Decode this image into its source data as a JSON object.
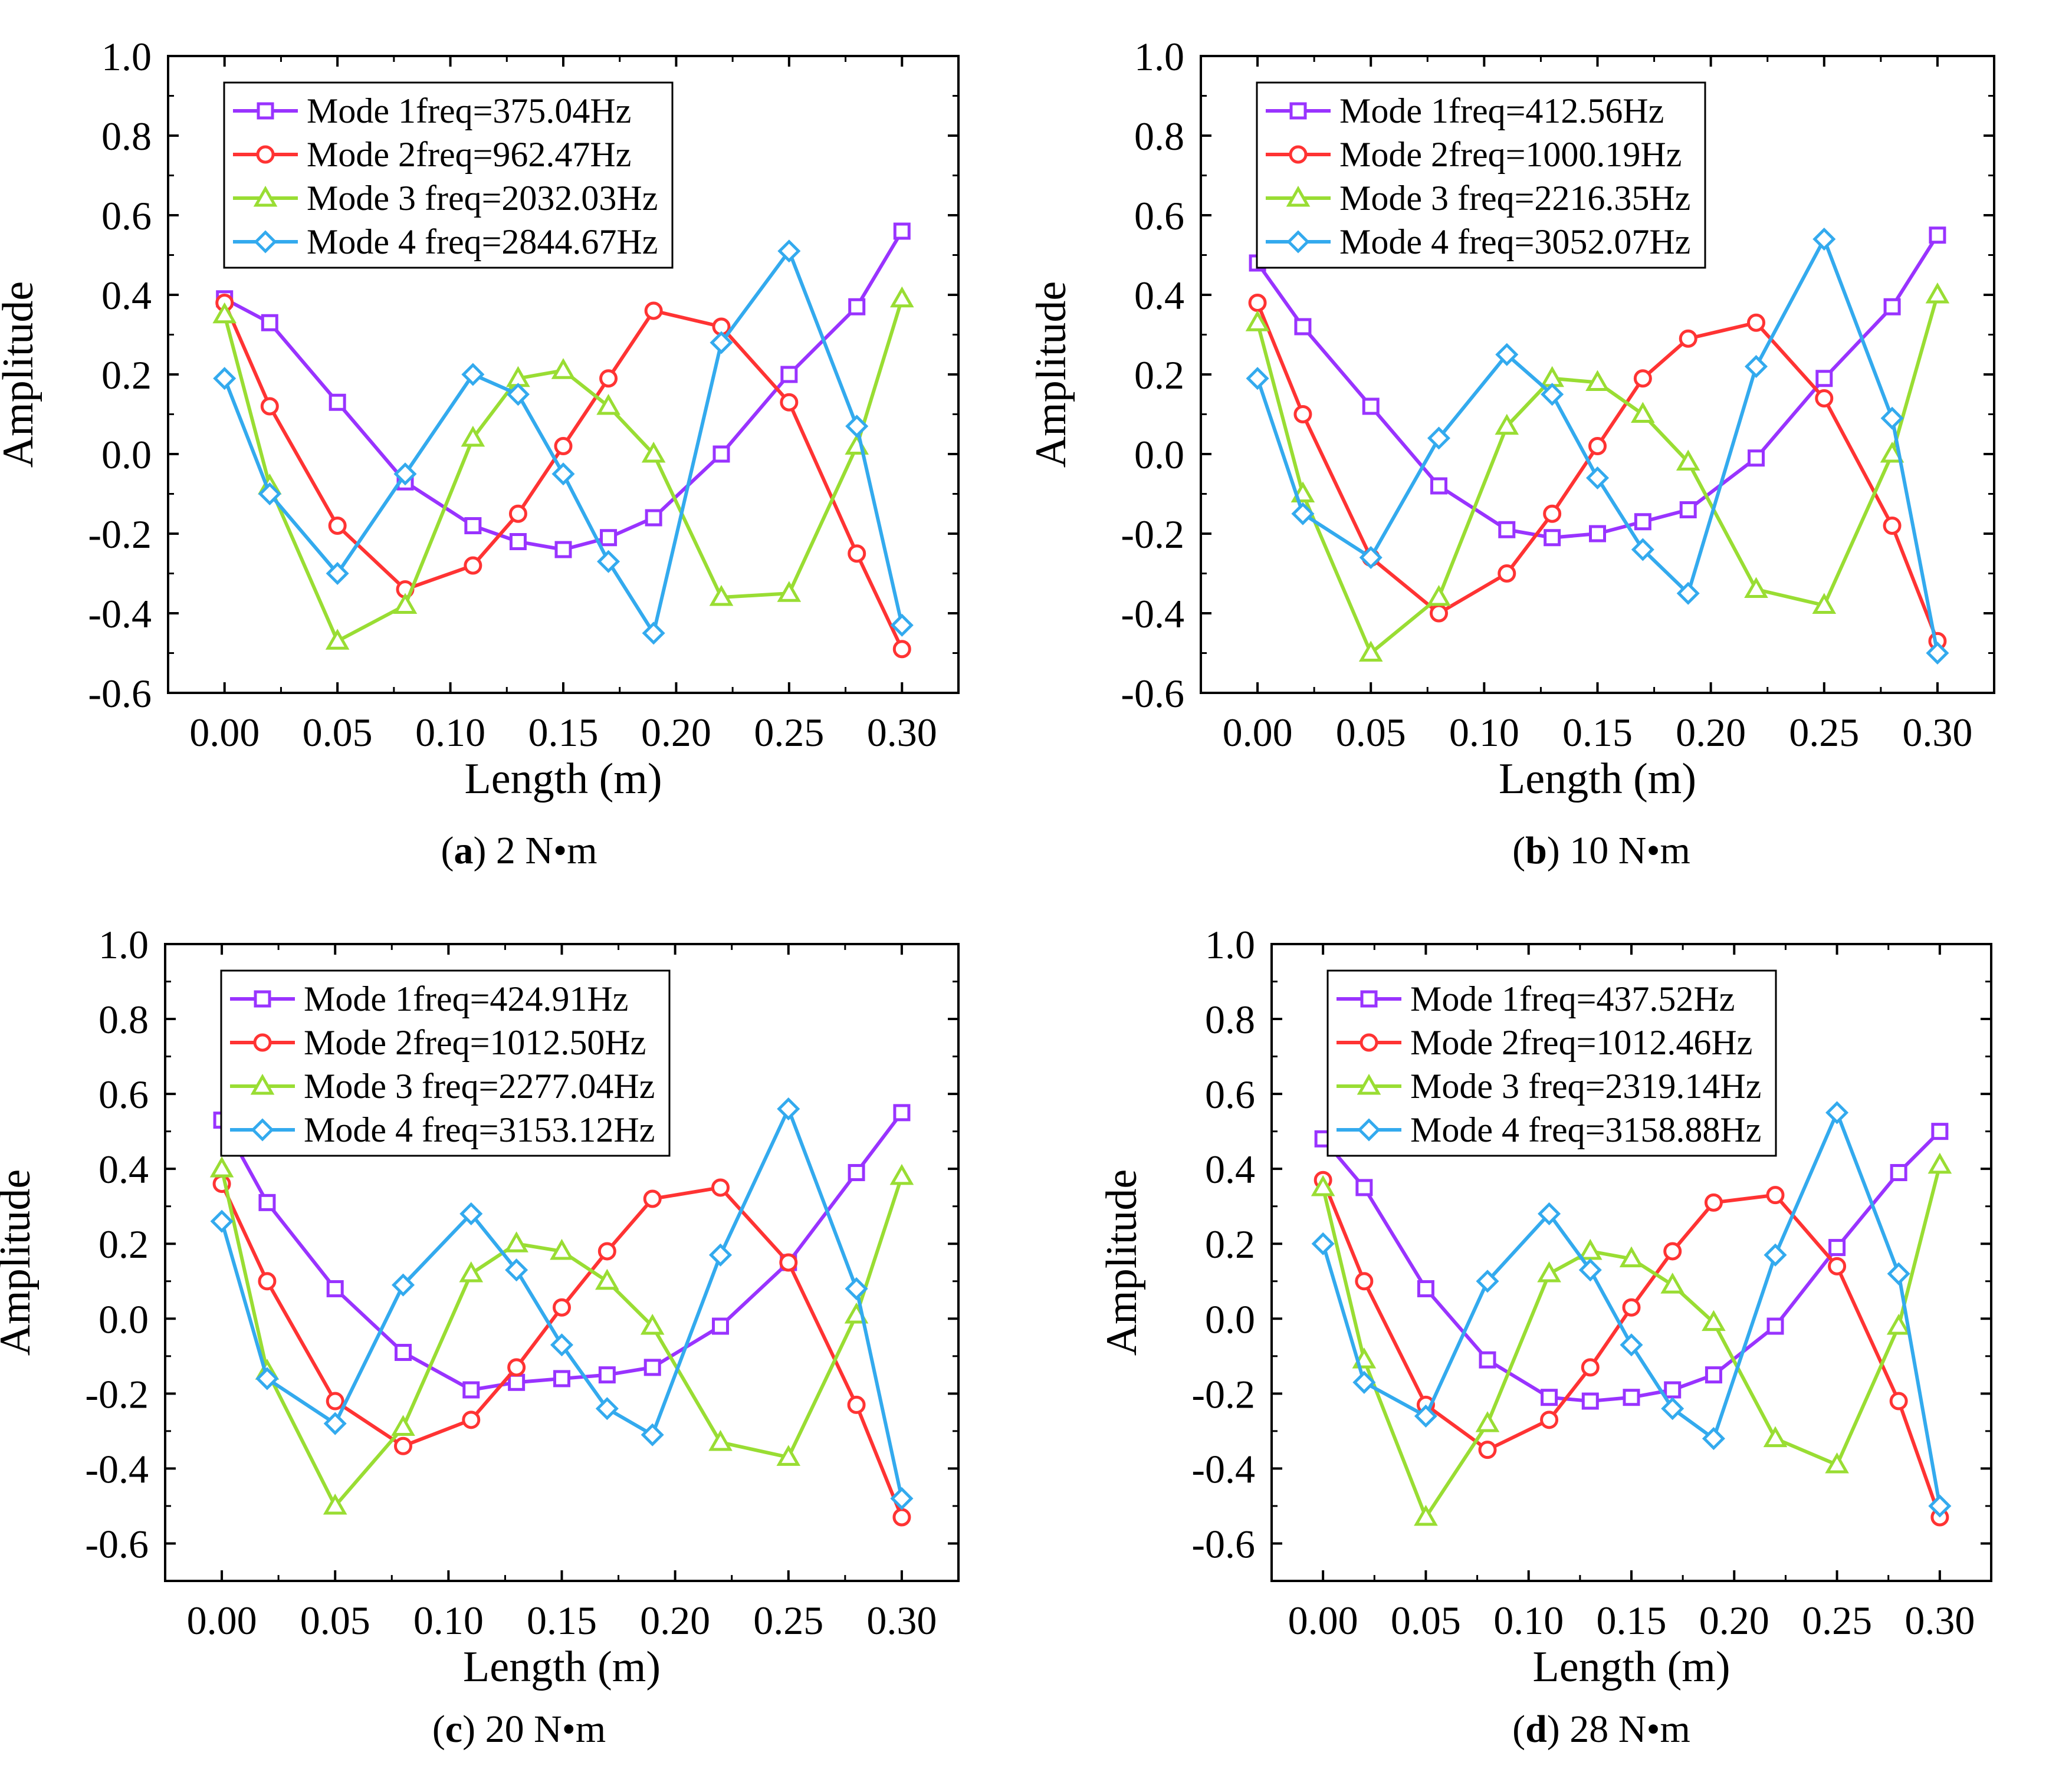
{
  "chart_data": [
    {
      "type": "line",
      "panel": "a",
      "caption": "2 N•m",
      "xlabel": "Length (m)",
      "ylabel": "Amplitude",
      "xlim": [
        -0.025,
        0.325
      ],
      "ylim": [
        -0.6,
        1.0
      ],
      "xticks": [
        "0.00",
        "0.05",
        "0.10",
        "0.15",
        "0.20",
        "0.25",
        "0.30"
      ],
      "yticks": [
        "1.0",
        "0.8",
        "0.6",
        "0.4",
        "0.2",
        "0.0",
        "-0.2",
        "-0.4",
        "-0.6"
      ],
      "x": [
        0.0,
        0.02,
        0.05,
        0.08,
        0.11,
        0.13,
        0.15,
        0.17,
        0.19,
        0.22,
        0.25,
        0.28,
        0.3
      ],
      "series": [
        {
          "name": "Mode 1",
          "freq": "freq=375.04Hz",
          "color": "#9933FF",
          "marker": "square",
          "values": [
            0.39,
            0.33,
            0.13,
            -0.07,
            -0.18,
            -0.22,
            -0.24,
            -0.21,
            -0.16,
            0.0,
            0.2,
            0.37,
            0.56
          ]
        },
        {
          "name": "Mode 2",
          "freq": "freq=962.47Hz",
          "color": "#FF3333",
          "marker": "circle",
          "values": [
            0.38,
            0.12,
            -0.18,
            -0.34,
            -0.28,
            -0.15,
            0.02,
            0.19,
            0.36,
            0.32,
            0.13,
            -0.25,
            -0.49
          ]
        },
        {
          "name": "Mode 3",
          "freq": "freq=2032.03Hz",
          "color": "#99DD33",
          "marker": "triangle",
          "values": [
            0.35,
            -0.08,
            -0.47,
            -0.38,
            0.04,
            0.19,
            0.21,
            0.12,
            0.0,
            -0.36,
            -0.35,
            0.02,
            0.39
          ]
        },
        {
          "name": "Mode 4",
          "freq": "freq=2844.67Hz",
          "color": "#33AAEE",
          "marker": "diamond",
          "values": [
            0.19,
            -0.1,
            -0.3,
            -0.05,
            0.2,
            0.15,
            -0.05,
            -0.27,
            -0.45,
            0.28,
            0.51,
            0.07,
            -0.43
          ]
        }
      ]
    },
    {
      "type": "line",
      "panel": "b",
      "caption": "10 N•m",
      "xlabel": "Length (m)",
      "ylabel": "Amplitude",
      "xlim": [
        -0.025,
        0.325
      ],
      "ylim": [
        -0.6,
        1.0
      ],
      "xticks": [
        "0.00",
        "0.05",
        "0.10",
        "0.15",
        "0.20",
        "0.25",
        "0.30"
      ],
      "yticks": [
        "1.0",
        "0.8",
        "0.6",
        "0.4",
        "0.2",
        "0.0",
        "-0.2",
        "-0.4",
        "-0.6"
      ],
      "x": [
        0.0,
        0.02,
        0.05,
        0.08,
        0.11,
        0.13,
        0.15,
        0.17,
        0.19,
        0.22,
        0.25,
        0.28,
        0.3
      ],
      "series": [
        {
          "name": "Mode 1",
          "freq": "freq=412.56Hz",
          "color": "#9933FF",
          "marker": "square",
          "values": [
            0.48,
            0.32,
            0.12,
            -0.08,
            -0.19,
            -0.21,
            -0.2,
            -0.17,
            -0.14,
            -0.01,
            0.19,
            0.37,
            0.55
          ]
        },
        {
          "name": "Mode 2",
          "freq": "freq=1000.19Hz",
          "color": "#FF3333",
          "marker": "circle",
          "values": [
            0.38,
            0.1,
            -0.26,
            -0.4,
            -0.3,
            -0.15,
            0.02,
            0.19,
            0.29,
            0.33,
            0.14,
            -0.18,
            -0.47
          ]
        },
        {
          "name": "Mode 3",
          "freq": "freq=2216.35Hz",
          "color": "#99DD33",
          "marker": "triangle",
          "values": [
            0.33,
            -0.1,
            -0.5,
            -0.36,
            0.07,
            0.19,
            0.18,
            0.1,
            -0.02,
            -0.34,
            -0.38,
            0.0,
            0.4
          ]
        },
        {
          "name": "Mode 4",
          "freq": "freq=3052.07Hz",
          "color": "#33AAEE",
          "marker": "diamond",
          "values": [
            0.19,
            -0.15,
            -0.26,
            0.04,
            0.25,
            0.15,
            -0.06,
            -0.24,
            -0.35,
            0.22,
            0.54,
            0.09,
            -0.5
          ]
        }
      ]
    },
    {
      "type": "line",
      "panel": "c",
      "caption": "20 N•m",
      "xlabel": "Length (m)",
      "ylabel": "Amplitude",
      "xlim": [
        -0.025,
        0.325
      ],
      "ylim": [
        -0.7,
        1.0
      ],
      "xticks": [
        "0.00",
        "0.05",
        "0.10",
        "0.15",
        "0.20",
        "0.25",
        "0.30"
      ],
      "yticks": [
        "1.0",
        "0.8",
        "0.6",
        "0.4",
        "0.2",
        "0.0",
        "-0.2",
        "-0.4",
        "-0.6"
      ],
      "x": [
        0.0,
        0.02,
        0.05,
        0.08,
        0.11,
        0.13,
        0.15,
        0.17,
        0.19,
        0.22,
        0.25,
        0.28,
        0.3
      ],
      "series": [
        {
          "name": "Mode 1",
          "freq": "freq=424.91Hz",
          "color": "#9933FF",
          "marker": "square",
          "values": [
            0.53,
            0.31,
            0.08,
            -0.09,
            -0.19,
            -0.17,
            -0.16,
            -0.15,
            -0.13,
            -0.02,
            0.15,
            0.39,
            0.55
          ]
        },
        {
          "name": "Mode 2",
          "freq": "freq=1012.50Hz",
          "color": "#FF3333",
          "marker": "circle",
          "values": [
            0.36,
            0.1,
            -0.22,
            -0.34,
            -0.27,
            -0.13,
            0.03,
            0.18,
            0.32,
            0.35,
            0.15,
            -0.23,
            -0.53
          ]
        },
        {
          "name": "Mode 3",
          "freq": "freq=2277.04Hz",
          "color": "#99DD33",
          "marker": "triangle",
          "values": [
            0.4,
            -0.14,
            -0.5,
            -0.29,
            0.12,
            0.2,
            0.18,
            0.1,
            -0.02,
            -0.33,
            -0.37,
            0.01,
            0.38
          ]
        },
        {
          "name": "Mode 4",
          "freq": "freq=3153.12Hz",
          "color": "#33AAEE",
          "marker": "diamond",
          "values": [
            0.26,
            -0.16,
            -0.28,
            0.09,
            0.28,
            0.13,
            -0.07,
            -0.24,
            -0.31,
            0.17,
            0.56,
            0.08,
            -0.48
          ]
        }
      ]
    },
    {
      "type": "line",
      "panel": "d",
      "caption": "28 N•m",
      "xlabel": "Length (m)",
      "ylabel": "Amplitude",
      "xlim": [
        -0.025,
        0.325
      ],
      "ylim": [
        -0.7,
        1.0
      ],
      "xticks": [
        "0.00",
        "0.05",
        "0.10",
        "0.15",
        "0.20",
        "0.25",
        "0.30"
      ],
      "yticks": [
        "1.0",
        "0.8",
        "0.6",
        "0.4",
        "0.2",
        "0.0",
        "-0.2",
        "-0.4",
        "-0.6"
      ],
      "x": [
        0.0,
        0.02,
        0.05,
        0.08,
        0.11,
        0.13,
        0.15,
        0.17,
        0.19,
        0.22,
        0.25,
        0.28,
        0.3
      ],
      "series": [
        {
          "name": "Mode 1",
          "freq": "freq=437.52Hz",
          "color": "#9933FF",
          "marker": "square",
          "values": [
            0.48,
            0.35,
            0.08,
            -0.11,
            -0.21,
            -0.22,
            -0.21,
            -0.19,
            -0.15,
            -0.02,
            0.19,
            0.39,
            0.5
          ]
        },
        {
          "name": "Mode 2",
          "freq": "freq=1012.46Hz",
          "color": "#FF3333",
          "marker": "circle",
          "values": [
            0.37,
            0.1,
            -0.23,
            -0.35,
            -0.27,
            -0.13,
            0.03,
            0.18,
            0.31,
            0.33,
            0.14,
            -0.22,
            -0.53
          ]
        },
        {
          "name": "Mode 3",
          "freq": "freq=2319.14Hz",
          "color": "#99DD33",
          "marker": "triangle",
          "values": [
            0.35,
            -0.11,
            -0.53,
            -0.28,
            0.12,
            0.18,
            0.16,
            0.09,
            -0.01,
            -0.32,
            -0.39,
            -0.02,
            0.41
          ]
        },
        {
          "name": "Mode 4",
          "freq": "freq=3158.88Hz",
          "color": "#33AAEE",
          "marker": "diamond",
          "values": [
            0.2,
            -0.17,
            -0.26,
            0.1,
            0.28,
            0.13,
            -0.07,
            -0.24,
            -0.32,
            0.17,
            0.55,
            0.12,
            -0.5
          ]
        }
      ]
    }
  ]
}
